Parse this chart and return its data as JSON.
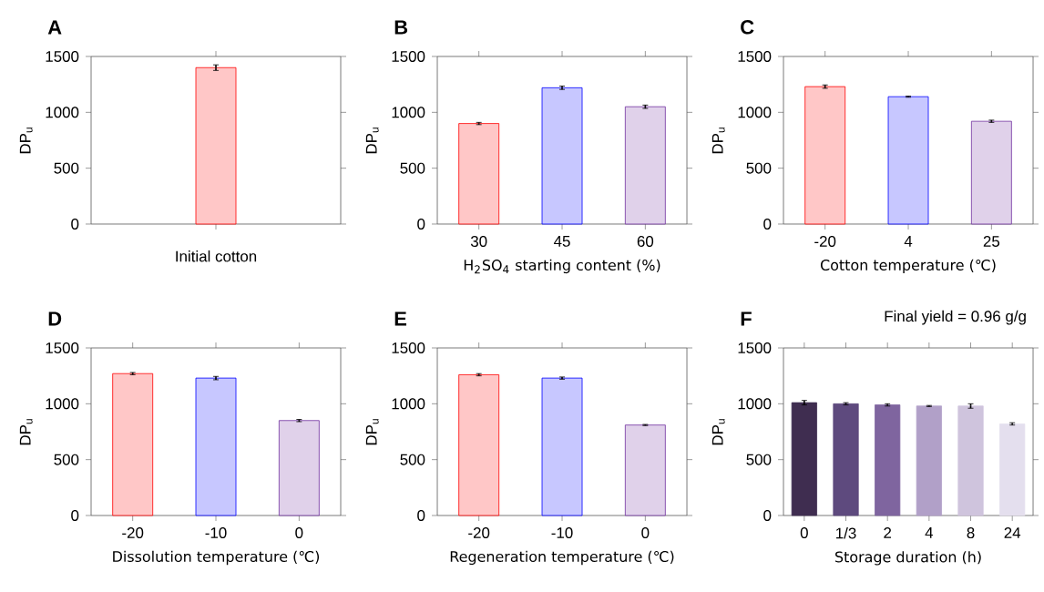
{
  "chart_data": [
    {
      "type": "bar",
      "title": "A",
      "ylabel": "DP$_{u}$",
      "categories": [
        "Initial cotton"
      ],
      "values": [
        1400
      ],
      "errors": [
        25
      ],
      "colors": [
        "#ff0000"
      ],
      "ylim": [
        0,
        1500
      ],
      "yticks": [
        0,
        500,
        1000,
        1500
      ]
    },
    {
      "type": "bar",
      "title": "B",
      "ylabel": "DP$_{u}$",
      "xlabel": "H$_{2}$SO$_{4}$ starting content (%)",
      "categories": [
        "30",
        "45",
        "60"
      ],
      "values": [
        900,
        1220,
        1050
      ],
      "errors": [
        10,
        15,
        15
      ],
      "colors": [
        "#ff0000",
        "#0000ff",
        "#7030a0"
      ],
      "ylim": [
        0,
        1500
      ],
      "yticks": [
        0,
        500,
        1000,
        1500
      ]
    },
    {
      "type": "bar",
      "title": "C",
      "ylabel": "DP$_{u}$",
      "xlabel": "Cotton temperature (℃)",
      "categories": [
        "-20",
        "4",
        "25"
      ],
      "values": [
        1230,
        1140,
        920
      ],
      "errors": [
        15,
        5,
        10
      ],
      "colors": [
        "#ff0000",
        "#0000ff",
        "#7030a0"
      ],
      "ylim": [
        0,
        1500
      ],
      "yticks": [
        0,
        500,
        1000,
        1500
      ]
    },
    {
      "type": "bar",
      "title": "D",
      "ylabel": "DP$_{u}$",
      "xlabel": "Dissolution temperature (℃)",
      "categories": [
        "-20",
        "-10",
        "0"
      ],
      "values": [
        1270,
        1230,
        850
      ],
      "errors": [
        10,
        15,
        10
      ],
      "colors": [
        "#ff0000",
        "#0000ff",
        "#7030a0"
      ],
      "ylim": [
        0,
        1500
      ],
      "yticks": [
        0,
        500,
        1000,
        1500
      ]
    },
    {
      "type": "bar",
      "title": "E",
      "ylabel": "DP$_{u}$",
      "xlabel": "Regeneration temperature (℃)",
      "categories": [
        "-20",
        "-10",
        "0"
      ],
      "values": [
        1260,
        1230,
        810
      ],
      "errors": [
        10,
        10,
        5
      ],
      "colors": [
        "#ff0000",
        "#0000ff",
        "#7030a0"
      ],
      "ylim": [
        0,
        1500
      ],
      "yticks": [
        0,
        500,
        1000,
        1500
      ]
    },
    {
      "type": "bar",
      "title": "F",
      "ylabel": "DP$_{u}$",
      "xlabel": "Storage duration (h)",
      "annotations": [
        "Final yield = 0.96 g/g"
      ],
      "categories": [
        "0",
        "1/3",
        "2",
        "4",
        "8",
        "24"
      ],
      "values": [
        1010,
        1000,
        990,
        980,
        980,
        820
      ],
      "errors": [
        20,
        10,
        10,
        5,
        20,
        10
      ],
      "colors": [
        "#3f2d50",
        "#5e4a7e",
        "#7f659f",
        "#b1a0c8",
        "#cfc4dd",
        "#e4dfee"
      ],
      "ylim": [
        0,
        1500
      ],
      "yticks": [
        0,
        500,
        1000,
        1500
      ]
    }
  ]
}
